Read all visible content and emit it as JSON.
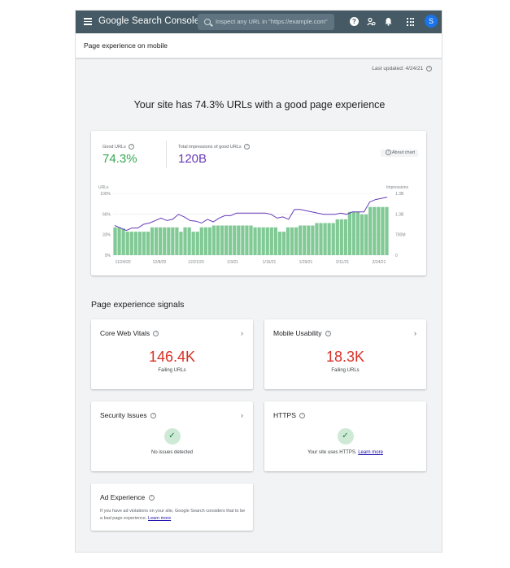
{
  "topbar": {
    "brand": "Google Search Console",
    "search_placeholder": "Inspect any URL in \"https://example.com\"",
    "avatar_initial": "S"
  },
  "page": {
    "title": "Page experience on mobile",
    "last_updated": "Last updated: 4/24/21",
    "headline": "Your site has 74.3% URLs with a good page experience"
  },
  "metrics": {
    "good_urls_label": "Good URLs",
    "good_urls_value": "74.3%",
    "impressions_label": "Total impressions of good URLs",
    "impressions_value": "120B",
    "about_chart": "About chart"
  },
  "colors": {
    "green": "#34a853",
    "bar_green": "#81c995",
    "purple": "#673ab7",
    "red": "#d93025",
    "topbar": "#455a64"
  },
  "chart_data": {
    "type": "bar",
    "left_axis_title": "URLs",
    "right_axis_title": "Impressions",
    "left_ticks": [
      "100%",
      "66%",
      "33%",
      "0%"
    ],
    "right_ticks": [
      "1.3B",
      "1.3B",
      "700M",
      "0"
    ],
    "x_ticks": [
      "11/24/20",
      "12/8/20",
      "12/21/20",
      "1/3/21",
      "1/16/21",
      "1/29/21",
      "2/11/21",
      "2/24/21"
    ],
    "ylim": [
      0,
      100
    ],
    "series": [
      {
        "type": "bar",
        "values": [
          45,
          45,
          43,
          38,
          38,
          38,
          38,
          38,
          38,
          45,
          45,
          45,
          45,
          45,
          45,
          45,
          38,
          45,
          45,
          38,
          38,
          45,
          45,
          45,
          48,
          48,
          48,
          48,
          48,
          48,
          48,
          48,
          48,
          48,
          45,
          45,
          45,
          45,
          45,
          45,
          38,
          38,
          45,
          45,
          45,
          48,
          48,
          48,
          48,
          52,
          52,
          52,
          52,
          52,
          58,
          58,
          58,
          70,
          70,
          70,
          66,
          66,
          78,
          78,
          78,
          78,
          78
        ]
      },
      {
        "type": "line",
        "values": [
          48,
          44,
          40,
          44,
          44,
          50,
          52,
          56,
          60,
          56,
          58,
          66,
          62,
          56,
          55,
          52,
          58,
          54,
          60,
          64,
          64,
          68,
          68,
          68,
          68,
          68,
          68,
          66,
          60,
          62,
          58,
          74,
          74,
          72,
          70,
          68,
          66,
          66,
          66,
          68,
          66,
          70,
          70,
          70,
          86,
          90,
          92,
          94
        ]
      }
    ]
  },
  "signals": {
    "section_title": "Page experience signals",
    "cwv": {
      "title": "Core Web Vitals",
      "value": "146.4K",
      "label": "Failing URLs"
    },
    "mobile": {
      "title": "Mobile Usability",
      "value": "18.3K",
      "label": "Failing URLs"
    },
    "security": {
      "title": "Security Issues",
      "label": "No issues detected"
    },
    "https": {
      "title": "HTTPS",
      "label": "Your site uses HTTPS.",
      "link": "Learn more"
    },
    "ad": {
      "title": "Ad Experience",
      "text": "If you have ad violations on your site, Google Search considers that to be a bad page experience.",
      "link": "Learn more"
    }
  }
}
